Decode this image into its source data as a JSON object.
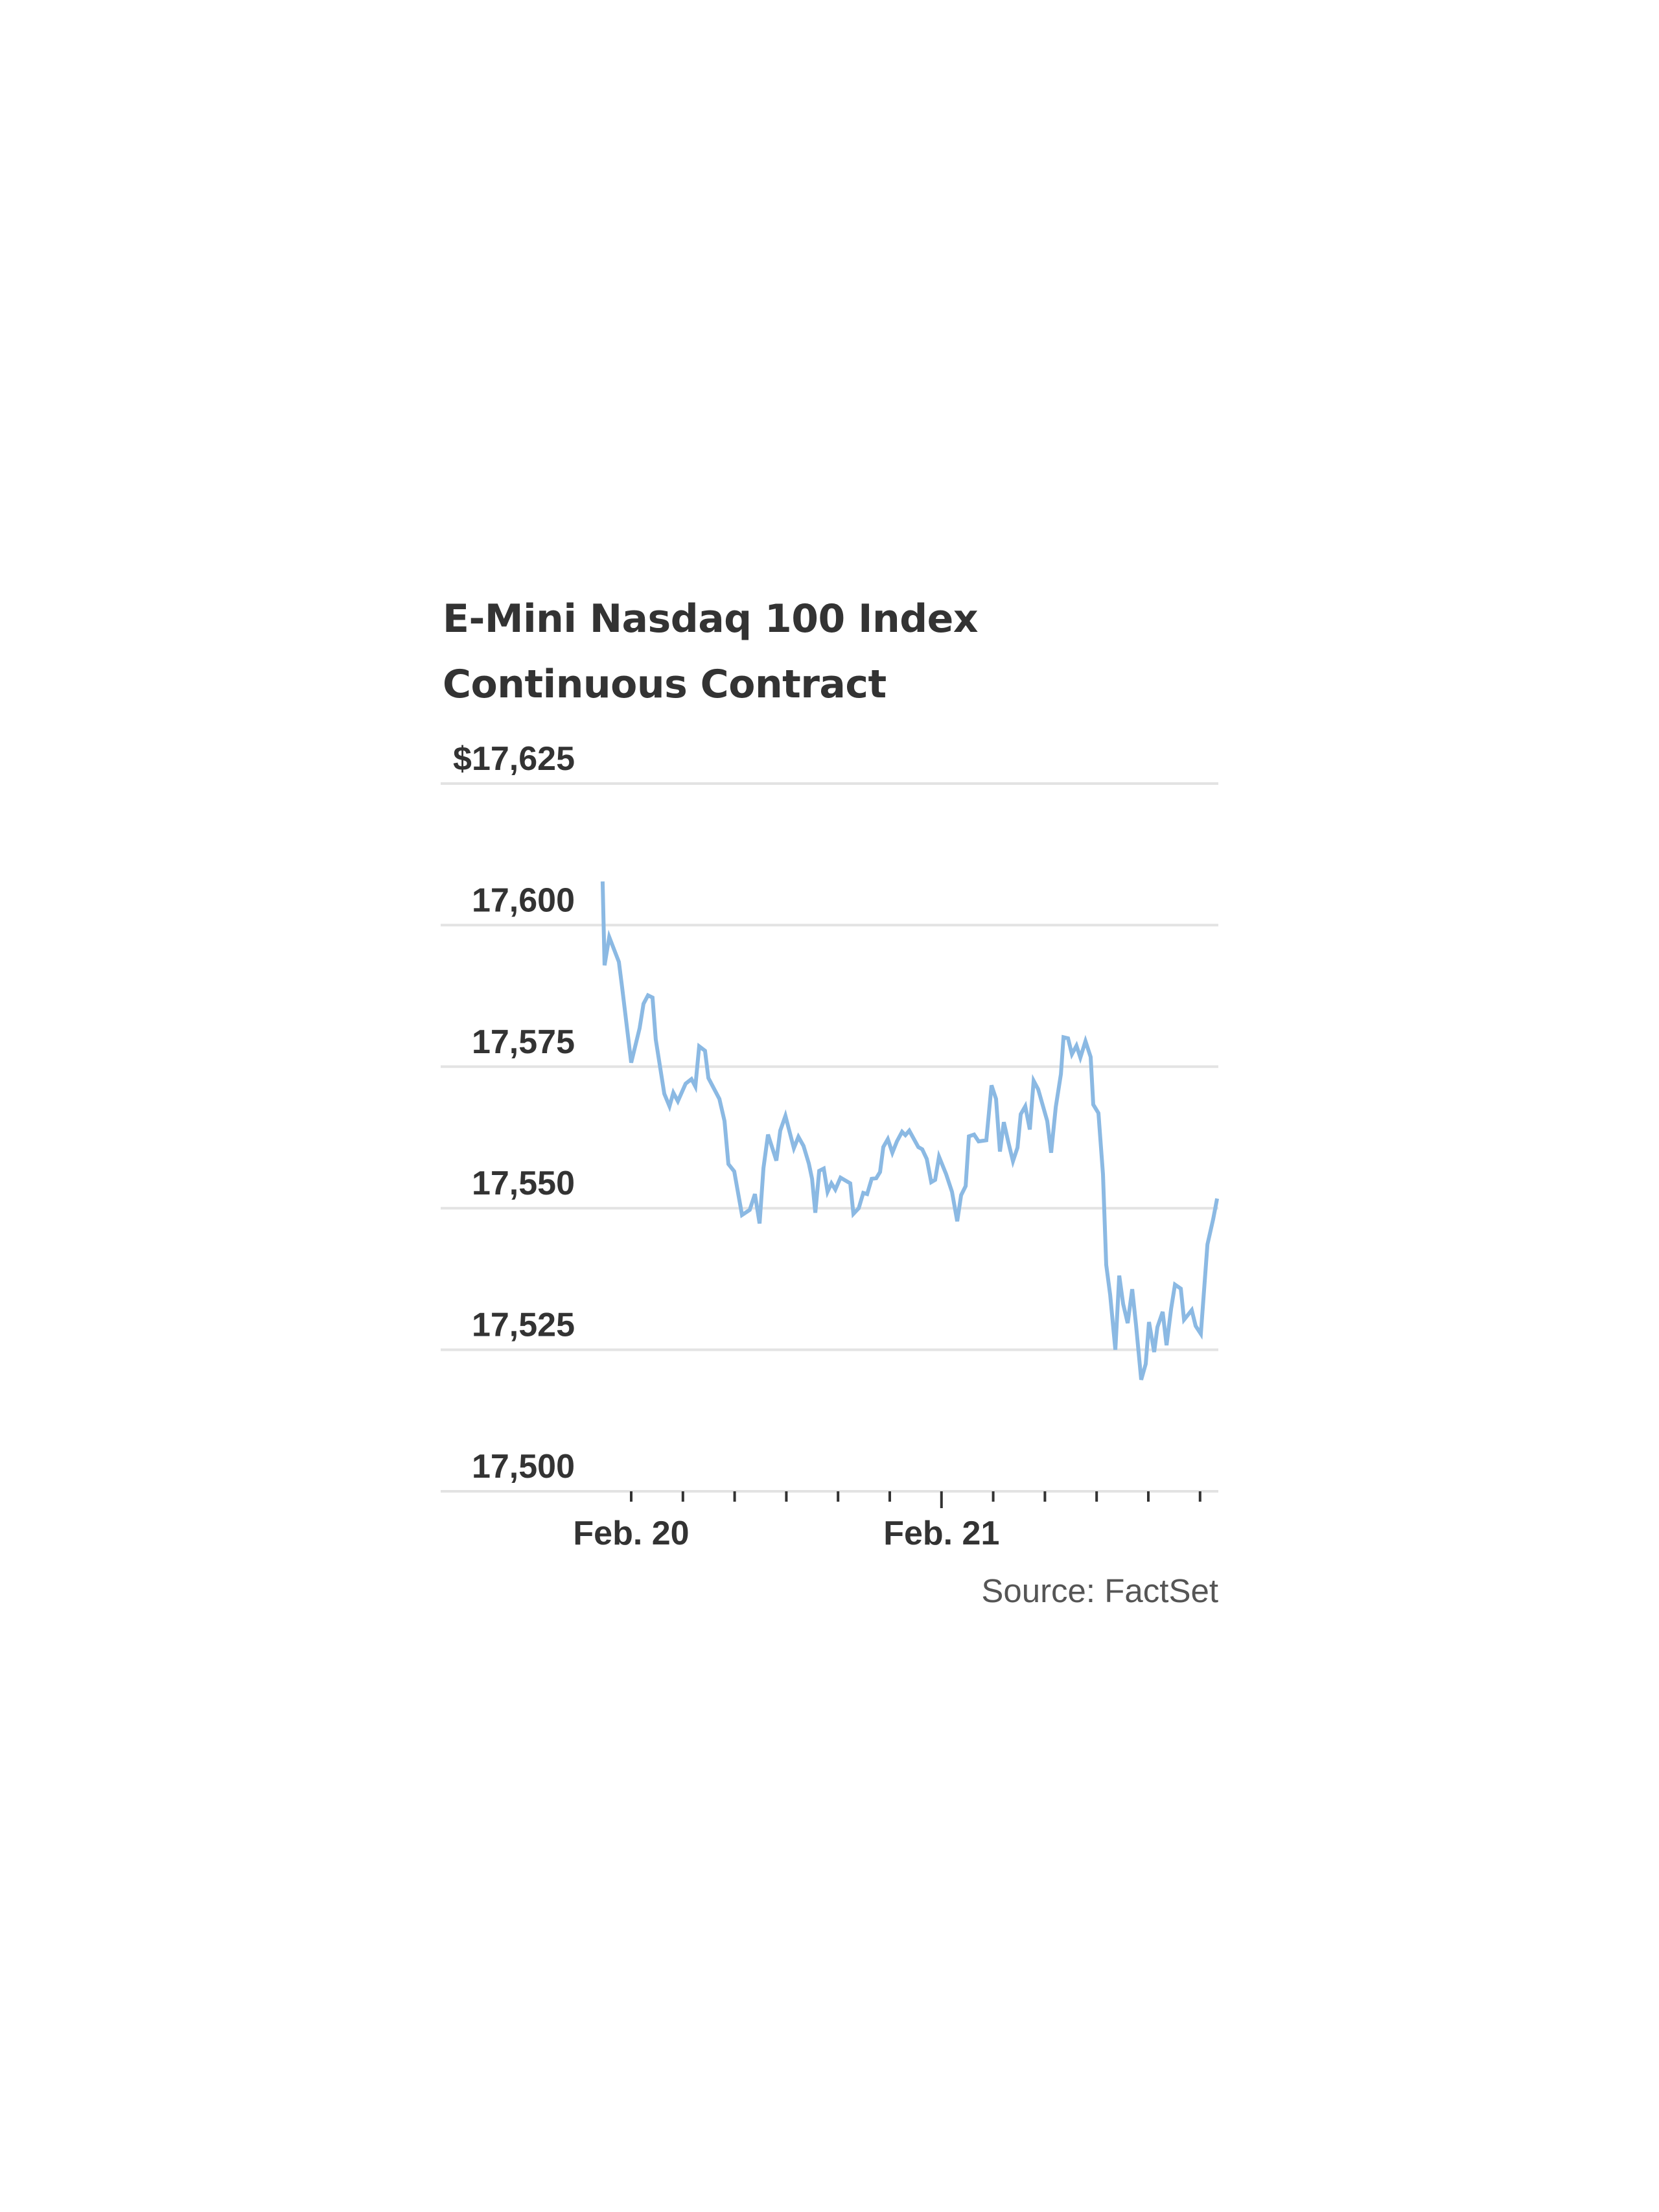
{
  "header": {
    "title": "E-Mini Nasdaq 100 Index Continuous Contract"
  },
  "footer": {
    "source": "Source: FactSet"
  },
  "colors": {
    "line": "#8BB9E3",
    "grid": "#E3E3E3",
    "text": "#333333",
    "tick": "#333333",
    "source_text": "#555555"
  },
  "chart_data": {
    "type": "line",
    "title": "E-Mini Nasdaq 100 Index Continuous Contract",
    "xlabel": "",
    "ylabel": "",
    "y_tick_labels": [
      "$17,625",
      "17,600",
      "17,575",
      "17,550",
      "17,525",
      "17,500"
    ],
    "y_ticks": [
      17625,
      17600,
      17575,
      17550,
      17525,
      17500
    ],
    "ylim": [
      17500,
      17625
    ],
    "x_tick_labels": [
      {
        "label": "Feb. 20",
        "hour": 0
      },
      {
        "label": "Feb. 21",
        "hour": 24
      }
    ],
    "x_minor_tick_hours": [
      0,
      4,
      8,
      12,
      16,
      20,
      24,
      28,
      32,
      36,
      40,
      44
    ],
    "x_unit": "hours since Feb. 20 00:00",
    "xlim": [
      -14.6,
      45.4
    ],
    "grid": true,
    "legend": null,
    "source": "Source: FactSet",
    "series": [
      {
        "name": "E-Mini Nasdaq 100 Index Continuous Contract",
        "points": [
          [
            -2.21,
            17607.7
          ],
          [
            -2.06,
            17592.9
          ],
          [
            -1.7,
            17597.9
          ],
          [
            -0.95,
            17593.5
          ],
          [
            -0.7,
            17589.0
          ],
          [
            0.0,
            17575.7
          ],
          [
            0.65,
            17581.8
          ],
          [
            0.95,
            17586.1
          ],
          [
            1.3,
            17587.6
          ],
          [
            1.65,
            17587.2
          ],
          [
            1.9,
            17579.8
          ],
          [
            2.56,
            17570.2
          ],
          [
            2.96,
            17568.0
          ],
          [
            3.26,
            17570.4
          ],
          [
            3.61,
            17568.9
          ],
          [
            4.21,
            17572.0
          ],
          [
            4.66,
            17572.8
          ],
          [
            4.96,
            17571.5
          ],
          [
            5.26,
            17578.6
          ],
          [
            5.71,
            17577.8
          ],
          [
            5.97,
            17573.0
          ],
          [
            6.82,
            17569.3
          ],
          [
            7.22,
            17565.4
          ],
          [
            7.52,
            17557.8
          ],
          [
            7.97,
            17556.5
          ],
          [
            8.57,
            17548.8
          ],
          [
            9.17,
            17549.7
          ],
          [
            9.57,
            17552.5
          ],
          [
            9.93,
            17547.3
          ],
          [
            10.23,
            17557.1
          ],
          [
            10.58,
            17563.0
          ],
          [
            11.23,
            17558.4
          ],
          [
            11.53,
            17563.7
          ],
          [
            11.93,
            17566.3
          ],
          [
            12.58,
            17560.6
          ],
          [
            12.93,
            17562.6
          ],
          [
            13.33,
            17561.0
          ],
          [
            13.74,
            17557.9
          ],
          [
            13.99,
            17555.2
          ],
          [
            14.24,
            17549.2
          ],
          [
            14.54,
            17556.6
          ],
          [
            14.89,
            17557.0
          ],
          [
            15.19,
            17552.9
          ],
          [
            15.49,
            17554.4
          ],
          [
            15.79,
            17553.3
          ],
          [
            16.19,
            17555.4
          ],
          [
            16.94,
            17554.4
          ],
          [
            17.19,
            17549.0
          ],
          [
            17.6,
            17550.0
          ],
          [
            17.95,
            17552.7
          ],
          [
            18.25,
            17552.5
          ],
          [
            18.6,
            17555.2
          ],
          [
            18.95,
            17555.3
          ],
          [
            19.25,
            17556.4
          ],
          [
            19.5,
            17560.8
          ],
          [
            19.85,
            17562.2
          ],
          [
            20.2,
            17559.8
          ],
          [
            20.55,
            17561.8
          ],
          [
            20.95,
            17563.5
          ],
          [
            21.21,
            17562.9
          ],
          [
            21.51,
            17563.7
          ],
          [
            22.21,
            17560.8
          ],
          [
            22.51,
            17560.4
          ],
          [
            22.86,
            17558.7
          ],
          [
            23.21,
            17554.6
          ],
          [
            23.51,
            17555.0
          ],
          [
            23.81,
            17559.1
          ],
          [
            24.36,
            17556.0
          ],
          [
            24.81,
            17552.9
          ],
          [
            25.22,
            17547.7
          ],
          [
            25.52,
            17552.3
          ],
          [
            25.87,
            17553.9
          ],
          [
            26.12,
            17562.7
          ],
          [
            26.52,
            17563.0
          ],
          [
            26.87,
            17561.8
          ],
          [
            27.47,
            17562.0
          ],
          [
            27.87,
            17571.7
          ],
          [
            28.22,
            17569.3
          ],
          [
            28.52,
            17560.0
          ],
          [
            28.82,
            17565.2
          ],
          [
            29.18,
            17561.6
          ],
          [
            29.53,
            17558.3
          ],
          [
            29.88,
            17560.7
          ],
          [
            30.13,
            17566.6
          ],
          [
            30.48,
            17568.0
          ],
          [
            30.83,
            17563.9
          ],
          [
            31.13,
            17572.5
          ],
          [
            31.48,
            17571.0
          ],
          [
            32.18,
            17565.4
          ],
          [
            32.48,
            17559.8
          ],
          [
            32.84,
            17567.9
          ],
          [
            33.24,
            17573.7
          ],
          [
            33.44,
            17580.2
          ],
          [
            33.79,
            17580.0
          ],
          [
            34.09,
            17577.2
          ],
          [
            34.44,
            17578.7
          ],
          [
            34.74,
            17576.6
          ],
          [
            35.14,
            17579.5
          ],
          [
            35.54,
            17576.7
          ],
          [
            35.74,
            17568.3
          ],
          [
            36.14,
            17566.8
          ],
          [
            36.49,
            17556.0
          ],
          [
            36.74,
            17540.0
          ],
          [
            37.05,
            17534.7
          ],
          [
            37.45,
            17525.0
          ],
          [
            37.75,
            17538.1
          ],
          [
            38.05,
            17533.1
          ],
          [
            38.4,
            17529.7
          ],
          [
            38.75,
            17535.7
          ],
          [
            39.05,
            17529.4
          ],
          [
            39.45,
            17519.7
          ],
          [
            39.8,
            17522.5
          ],
          [
            40.05,
            17529.9
          ],
          [
            40.45,
            17524.6
          ],
          [
            40.7,
            17529.0
          ],
          [
            41.11,
            17531.7
          ],
          [
            41.41,
            17525.8
          ],
          [
            41.76,
            17532.2
          ],
          [
            42.06,
            17536.5
          ],
          [
            42.51,
            17535.8
          ],
          [
            42.76,
            17530.3
          ],
          [
            43.36,
            17532.0
          ],
          [
            43.66,
            17529.2
          ],
          [
            44.06,
            17527.8
          ],
          [
            44.57,
            17543.6
          ],
          [
            45.02,
            17548.1
          ],
          [
            45.32,
            17551.7
          ]
        ]
      }
    ]
  }
}
